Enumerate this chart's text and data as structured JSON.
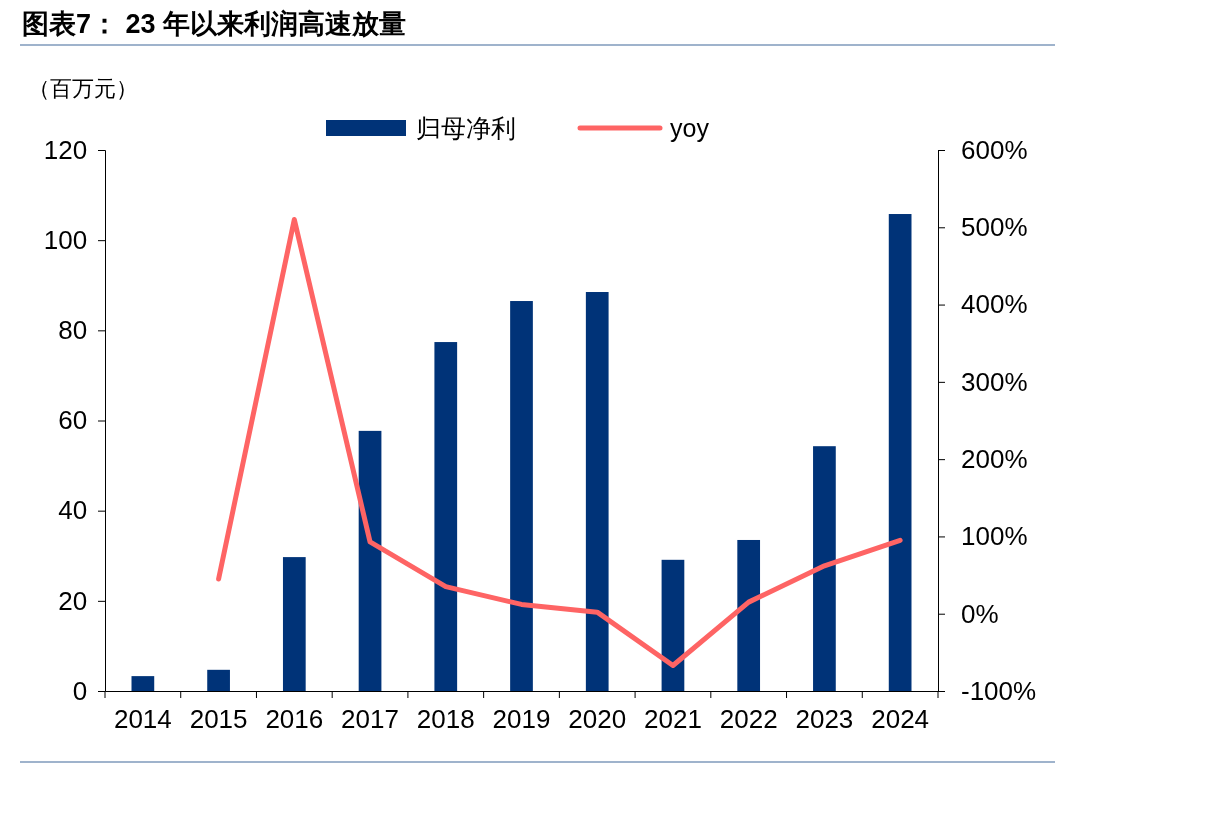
{
  "chart_data": {
    "type": "bar",
    "title": "图表7：  23 年以来利润高速放量",
    "ylabel": "（百万元）",
    "categories": [
      "2014",
      "2015",
      "2016",
      "2017",
      "2018",
      "2019",
      "2020",
      "2021",
      "2022",
      "2023",
      "2024"
    ],
    "series": [
      {
        "name": "归母净利",
        "color": "#003378",
        "values": [
          3.3,
          4.7,
          29.7,
          57.7,
          77.4,
          86.5,
          88.5,
          29.1,
          33.5,
          54.3,
          105.8
        ]
      },
      {
        "name": "yoy",
        "type": "line",
        "axis": "y2",
        "color": "#fe6464",
        "values": [
          null,
          45,
          510,
          93,
          35,
          12,
          2,
          -67,
          15,
          62,
          95
        ]
      }
    ],
    "ylim": [
      0,
      120
    ],
    "yticks": [
      0,
      20,
      40,
      60,
      80,
      100,
      120
    ],
    "y2lim": [
      -100,
      600
    ],
    "y2ticks": [
      {
        "value": -100,
        "label": "-100%"
      },
      {
        "value": 0,
        "label": "0%"
      },
      {
        "value": 100,
        "label": "100%"
      },
      {
        "value": 200,
        "label": "200%"
      },
      {
        "value": 300,
        "label": "300%"
      },
      {
        "value": 400,
        "label": "400%"
      },
      {
        "value": 500,
        "label": "500%"
      },
      {
        "value": 600,
        "label": "600%"
      }
    ],
    "grid": false,
    "legend": "top",
    "marker": "none",
    "line_style": "solid"
  }
}
